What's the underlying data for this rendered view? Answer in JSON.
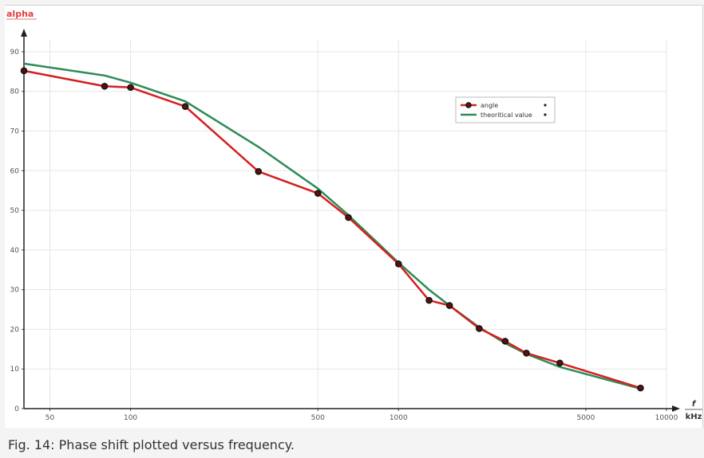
{
  "caption": "Fig. 14: Phase shift plotted versus frequency.",
  "chart_data": {
    "type": "line",
    "ylabel": "alpha",
    "xlabel_top": "f",
    "xlabel_bottom": "kHz",
    "x_scale": "log",
    "xlim": [
      40,
      10000
    ],
    "ylim": [
      0,
      92
    ],
    "x_ticks": [
      50,
      100,
      500,
      1000,
      5000,
      10000
    ],
    "y_ticks": [
      0,
      10,
      20,
      30,
      40,
      50,
      60,
      70,
      80,
      90
    ],
    "grid": true,
    "legend_position": "top-right",
    "series": [
      {
        "name": "angle",
        "color": "#d42020",
        "marker": "circle",
        "points": [
          [
            40,
            85.2
          ],
          [
            80,
            81.3
          ],
          [
            100,
            81.0
          ],
          [
            160,
            76.2
          ],
          [
            300,
            59.8
          ],
          [
            500,
            54.3
          ],
          [
            650,
            48.2
          ],
          [
            1000,
            36.5
          ],
          [
            1300,
            27.3
          ],
          [
            1550,
            26.0
          ],
          [
            2000,
            20.2
          ],
          [
            2500,
            17.0
          ],
          [
            3000,
            14.0
          ],
          [
            4000,
            11.5
          ],
          [
            8000,
            5.2
          ]
        ]
      },
      {
        "name": "theoritical value",
        "color": "#2e8b57",
        "marker": "none",
        "points": [
          [
            40,
            87.0
          ],
          [
            80,
            84.0
          ],
          [
            100,
            82.2
          ],
          [
            160,
            77.5
          ],
          [
            300,
            66.0
          ],
          [
            500,
            55.5
          ],
          [
            650,
            48.8
          ],
          [
            1000,
            36.8
          ],
          [
            1300,
            30.0
          ],
          [
            1550,
            26.0
          ],
          [
            2000,
            20.5
          ],
          [
            2500,
            16.5
          ],
          [
            3000,
            13.8
          ],
          [
            4000,
            10.5
          ],
          [
            8000,
            5.0
          ]
        ]
      }
    ]
  }
}
